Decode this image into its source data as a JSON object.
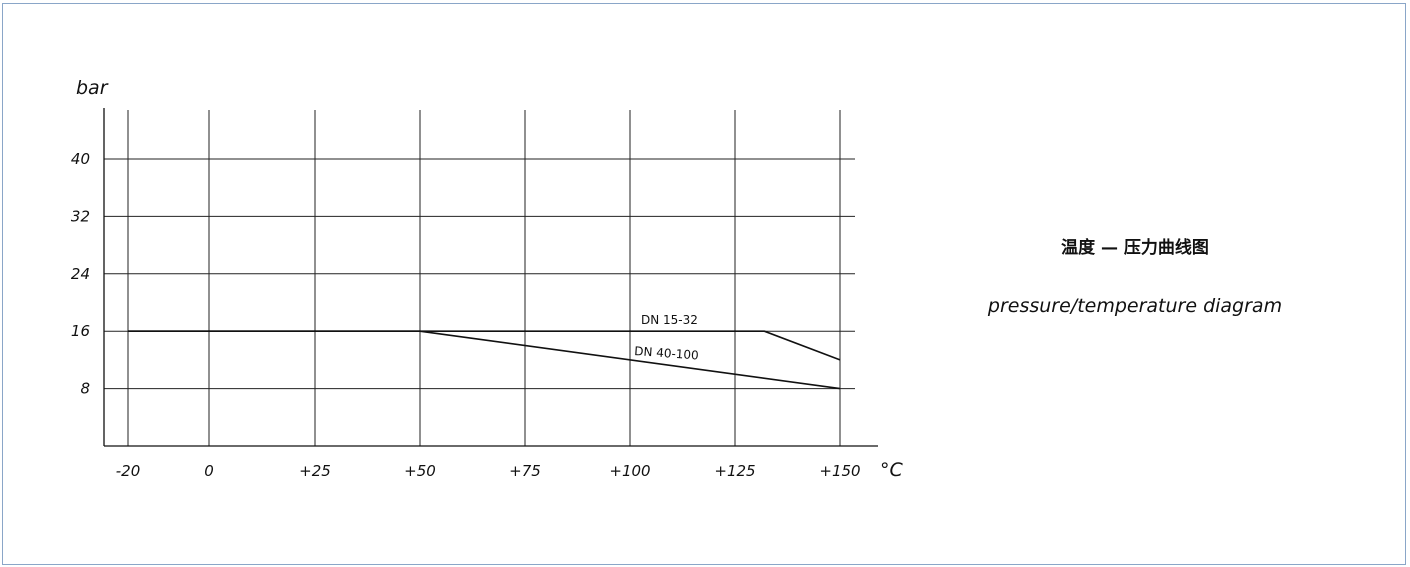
{
  "chart_data": {
    "type": "line",
    "title": "温度 — 压力曲线图",
    "subtitle": "pressure/temperature diagram",
    "xlabel": "°C",
    "ylabel": "bar",
    "x_ticks": [
      "-20",
      "0",
      "+25",
      "+50",
      "+75",
      "+100",
      "+125",
      "+150"
    ],
    "y_ticks": [
      "8",
      "16",
      "24",
      "32",
      "40"
    ],
    "xlim": [
      -20,
      150
    ],
    "ylim": [
      0,
      48
    ],
    "grid": true,
    "series": [
      {
        "name": "DN 15-32",
        "x": [
          -20,
          50,
          132,
          150
        ],
        "y": [
          16,
          16,
          16,
          12
        ]
      },
      {
        "name": "DN 40-100",
        "x": [
          -20,
          50,
          150
        ],
        "y": [
          16,
          16,
          8
        ]
      }
    ]
  }
}
